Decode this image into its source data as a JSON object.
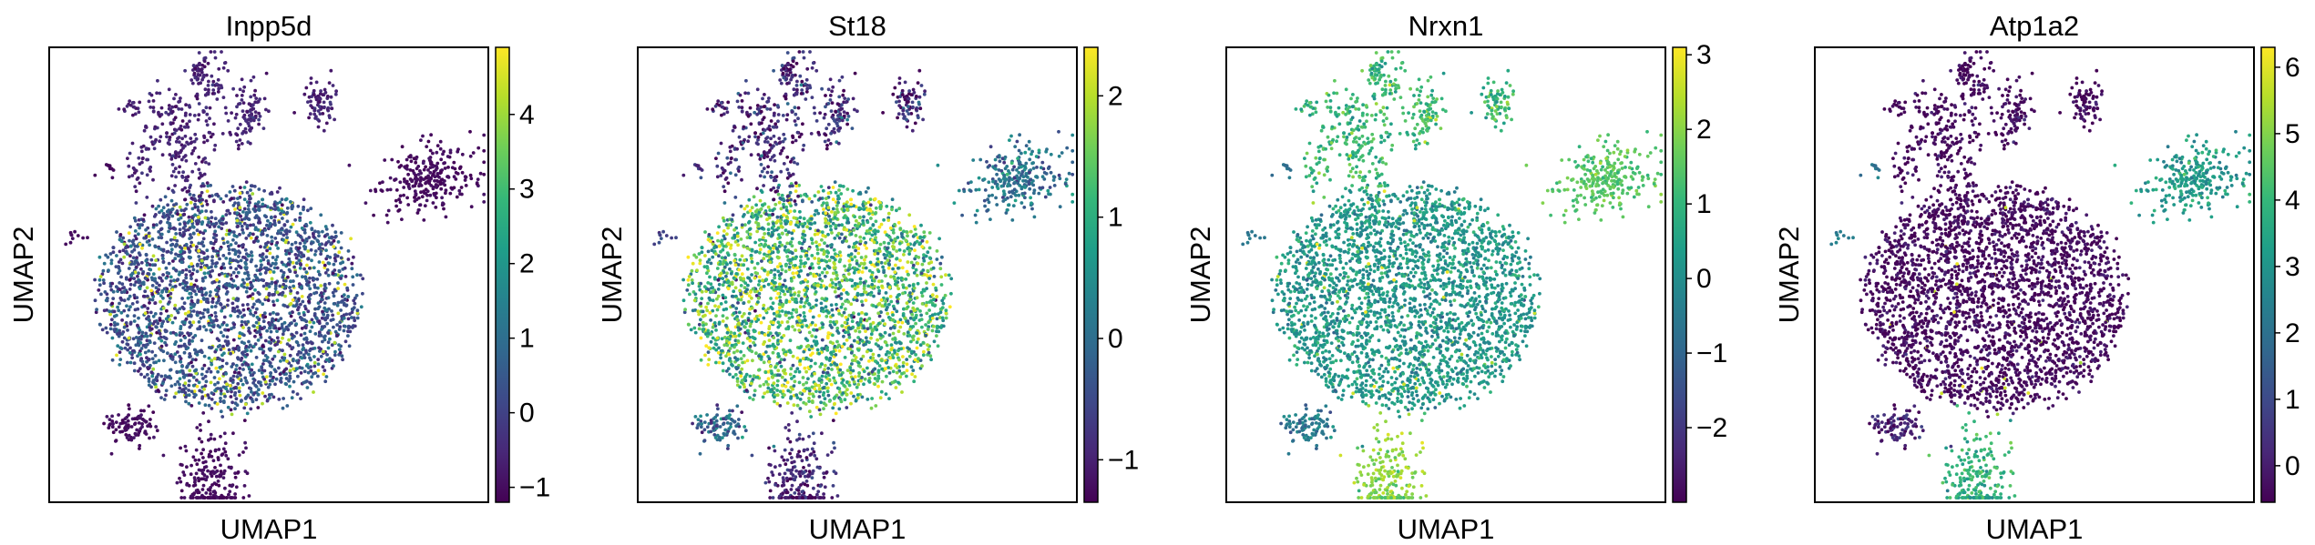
{
  "colormap": "viridis",
  "colormap_stops": [
    "#440154",
    "#482878",
    "#3e4989",
    "#31688e",
    "#26828e",
    "#1f9e89",
    "#35b779",
    "#6ece58",
    "#b5de2b",
    "#fde725"
  ],
  "point_color_scatter": "#440154",
  "chart_data": [
    {
      "type": "scatter",
      "title": "Inpp5d",
      "xlabel": "UMAP1",
      "ylabel": "UMAP2",
      "xticks_shown": false,
      "yticks_shown": false,
      "grid": false,
      "colorbar": {
        "min": -1.2,
        "max": 4.9,
        "ticks": [
          -1,
          0,
          1,
          2,
          3,
          4
        ],
        "tick_labels": [
          "−1",
          "0",
          "1",
          "2",
          "3",
          "4"
        ]
      },
      "expression": {
        "main": [
          0.3,
          0.6
        ],
        "satellite": [
          -0.6,
          0.2
        ],
        "right": [
          -1.0,
          0.1
        ],
        "leftsmall": [
          -1.0,
          0.1
        ],
        "bottom": [
          -1.0,
          0.1
        ],
        "dot": [
          -1.0,
          0.1
        ],
        "highfrac": 0.07
      }
    },
    {
      "type": "scatter",
      "title": "St18",
      "xlabel": "UMAP1",
      "ylabel": "UMAP2",
      "xticks_shown": false,
      "yticks_shown": false,
      "grid": false,
      "colorbar": {
        "min": -1.35,
        "max": 2.4,
        "ticks": [
          -1,
          0,
          1,
          2
        ],
        "tick_labels": [
          "−1",
          "0",
          "1",
          "2"
        ]
      },
      "expression": {
        "main": [
          1.1,
          0.8
        ],
        "satellite": [
          -0.9,
          0.4
        ],
        "right": [
          0.1,
          0.4
        ],
        "leftsmall": [
          -0.2,
          0.4
        ],
        "bottom": [
          -1.0,
          0.3
        ],
        "dot": [
          -0.5,
          0.4
        ],
        "highfrac": 0.04
      }
    },
    {
      "type": "scatter",
      "title": "Nrxn1",
      "xlabel": "UMAP1",
      "ylabel": "UMAP2",
      "xticks_shown": false,
      "yticks_shown": false,
      "grid": false,
      "colorbar": {
        "min": -3.0,
        "max": 3.1,
        "ticks": [
          -2,
          -1,
          0,
          1,
          2,
          3
        ],
        "tick_labels": [
          "−2",
          "−1",
          "0",
          "1",
          "2",
          "3"
        ]
      },
      "expression": {
        "main": [
          0.2,
          0.5
        ],
        "satellite": [
          1.1,
          0.5
        ],
        "right": [
          1.5,
          0.3
        ],
        "leftsmall": [
          -0.6,
          0.4
        ],
        "bottom": [
          2.0,
          0.4
        ],
        "dot": [
          -0.5,
          0.3
        ],
        "highfrac": 0.02
      }
    },
    {
      "type": "scatter",
      "title": "Atp1a2",
      "xlabel": "UMAP1",
      "ylabel": "UMAP2",
      "xticks_shown": false,
      "yticks_shown": false,
      "grid": false,
      "colorbar": {
        "min": -0.55,
        "max": 6.3,
        "ticks": [
          0,
          1,
          2,
          3,
          4,
          5,
          6
        ],
        "tick_labels": [
          "0",
          "1",
          "2",
          "3",
          "4",
          "5",
          "6"
        ]
      },
      "expression": {
        "main": [
          -0.4,
          0.3
        ],
        "satellite": [
          -0.4,
          0.3
        ],
        "right": [
          3.2,
          0.5
        ],
        "leftsmall": [
          0.0,
          0.4
        ],
        "bottom": [
          3.8,
          0.5
        ],
        "dot": [
          2.5,
          0.5
        ],
        "highfrac": 0.01
      }
    }
  ]
}
